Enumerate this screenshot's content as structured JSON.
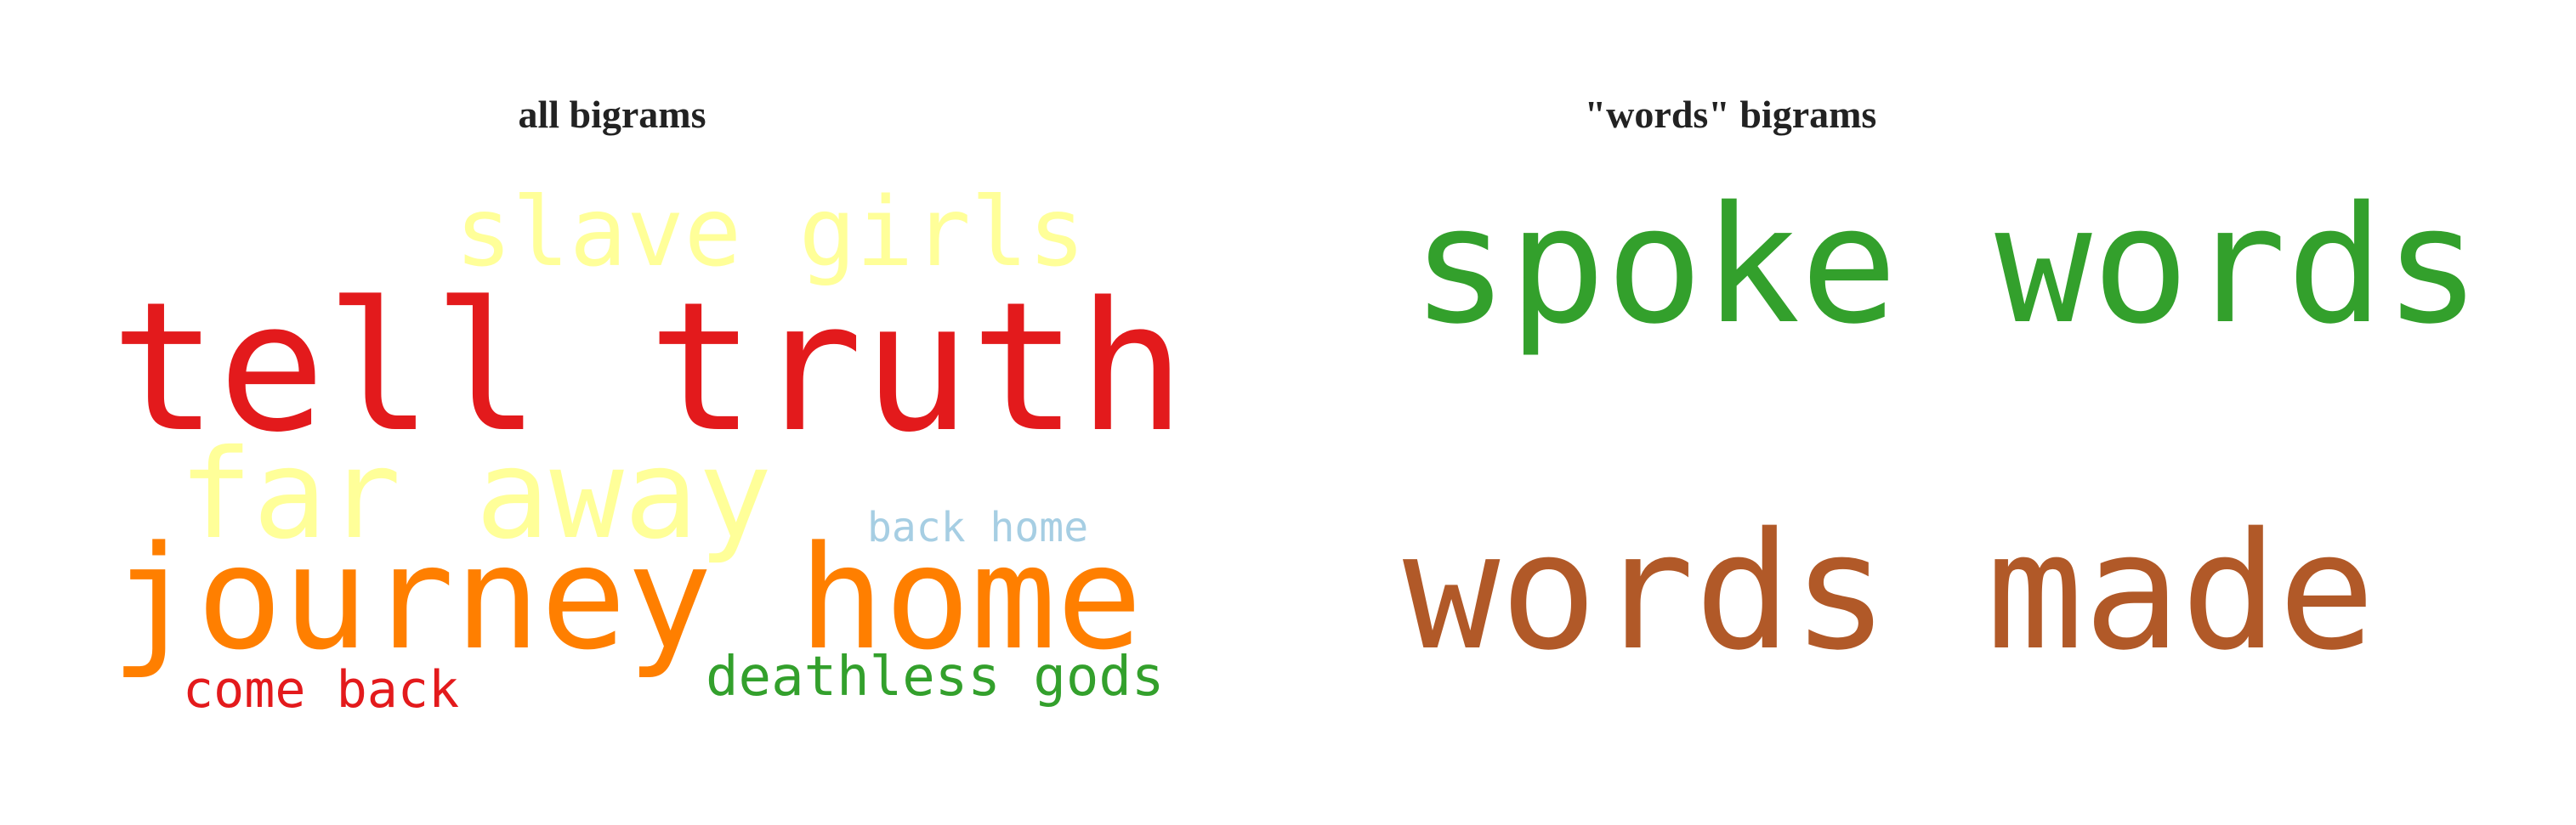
{
  "chart_data": [
    {
      "type": "wordcloud",
      "title": "all bigrams",
      "words": [
        {
          "text": "tell truth",
          "color": "#e31a1c"
        },
        {
          "text": "journey home",
          "color": "#ff7f00"
        },
        {
          "text": "far away",
          "color": "#ffff99"
        },
        {
          "text": "slave girls",
          "color": "#ffff99"
        },
        {
          "text": "deathless gods",
          "color": "#33a02c"
        },
        {
          "text": "come back",
          "color": "#e31a1c"
        },
        {
          "text": "back home",
          "color": "#a6cee3"
        }
      ]
    },
    {
      "type": "wordcloud",
      "title": "\"words\" bigrams",
      "words": [
        {
          "text": "spoke words",
          "color": "#33a02c"
        },
        {
          "text": "words made",
          "color": "#b15928"
        }
      ]
    }
  ]
}
